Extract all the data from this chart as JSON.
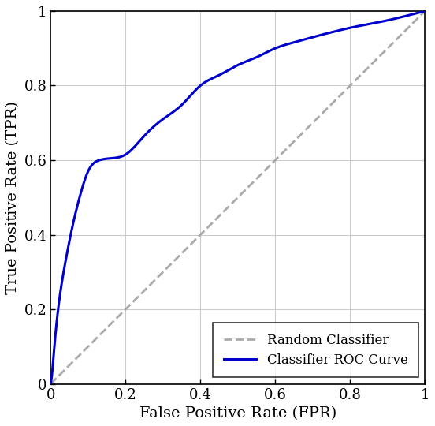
{
  "title": "",
  "xlabel": "False Positive Rate (FPR)",
  "ylabel": "True Positive Rate (TPR)",
  "random_label": "Random Classifier",
  "roc_label": "Classifier ROC Curve",
  "roc_color": "#0000CC",
  "random_color": "#aaaaaa",
  "roc_linewidth": 2.2,
  "random_linewidth": 2.0,
  "xlim": [
    0,
    1
  ],
  "ylim": [
    0,
    1
  ],
  "xticks": [
    0,
    0.2,
    0.4,
    0.6,
    0.8,
    1
  ],
  "yticks": [
    0,
    0.2,
    0.4,
    0.6,
    0.8,
    1
  ],
  "grid_color": "#cccccc",
  "legend_loc": "lower right",
  "font_family": "serif",
  "label_fontsize": 14,
  "legend_fontsize": 12,
  "tick_fontsize": 13,
  "fpr_pts": [
    0.0,
    0.005,
    0.01,
    0.02,
    0.04,
    0.06,
    0.08,
    0.1,
    0.13,
    0.16,
    0.2,
    0.25,
    0.3,
    0.35,
    0.4,
    0.45,
    0.5,
    0.55,
    0.6,
    0.65,
    0.7,
    0.75,
    0.8,
    0.85,
    0.9,
    0.95,
    1.0
  ],
  "tpr_pts": [
    0.0,
    0.04,
    0.1,
    0.2,
    0.33,
    0.43,
    0.51,
    0.57,
    0.6,
    0.605,
    0.615,
    0.665,
    0.71,
    0.748,
    0.8,
    0.828,
    0.855,
    0.876,
    0.9,
    0.916,
    0.93,
    0.943,
    0.955,
    0.965,
    0.975,
    0.987,
    1.0
  ]
}
